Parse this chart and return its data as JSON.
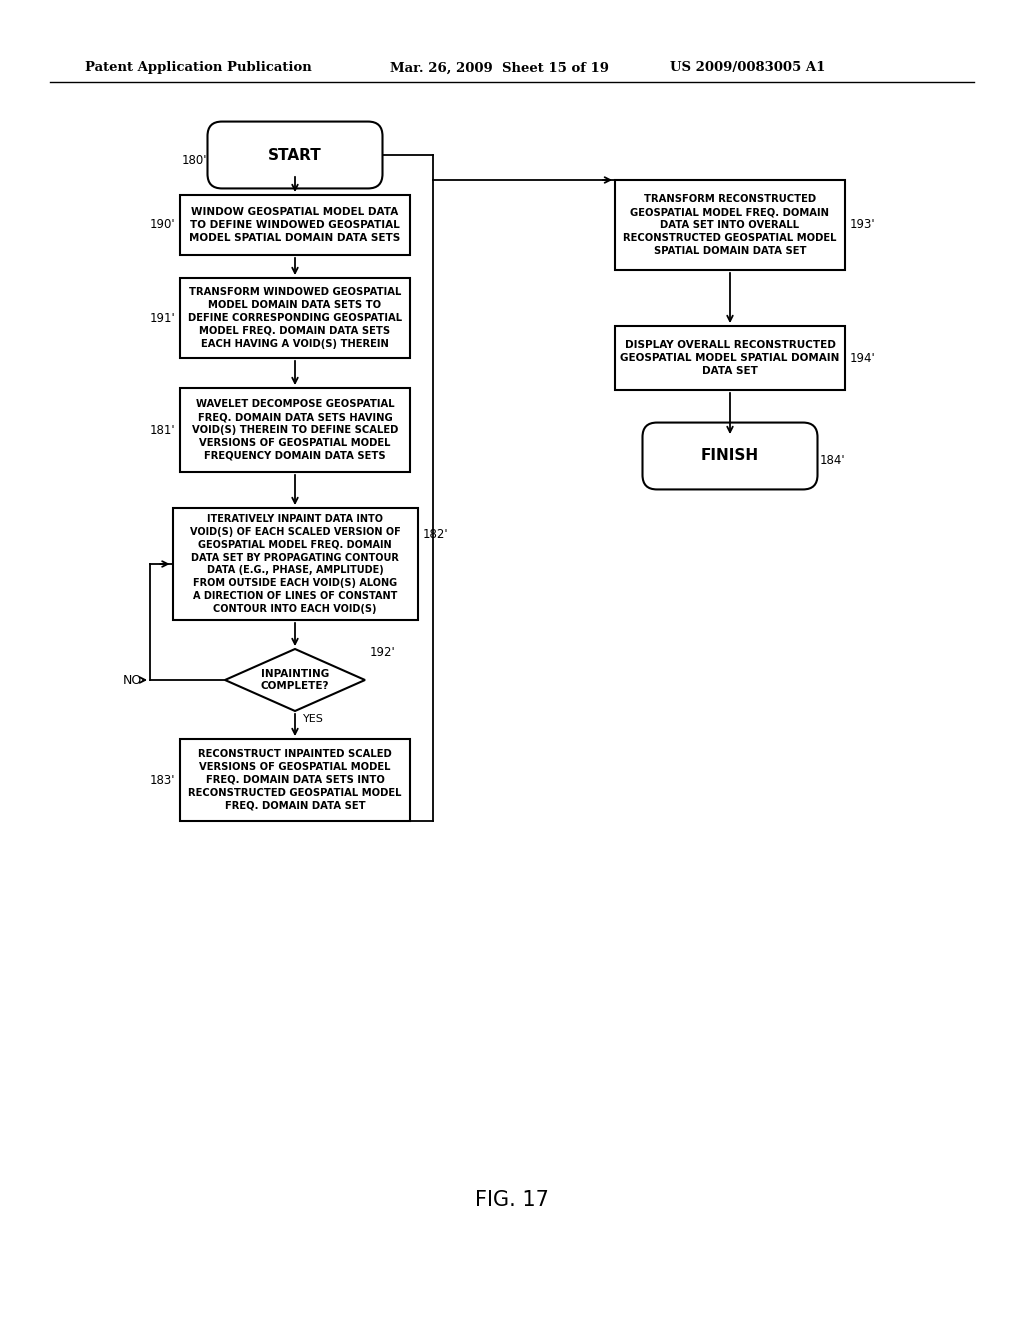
{
  "header_left": "Patent Application Publication",
  "header_mid": "Mar. 26, 2009  Sheet 15 of 19",
  "header_right": "US 2009/0083005 A1",
  "fig_label": "FIG. 17",
  "bg_color": "#ffffff"
}
